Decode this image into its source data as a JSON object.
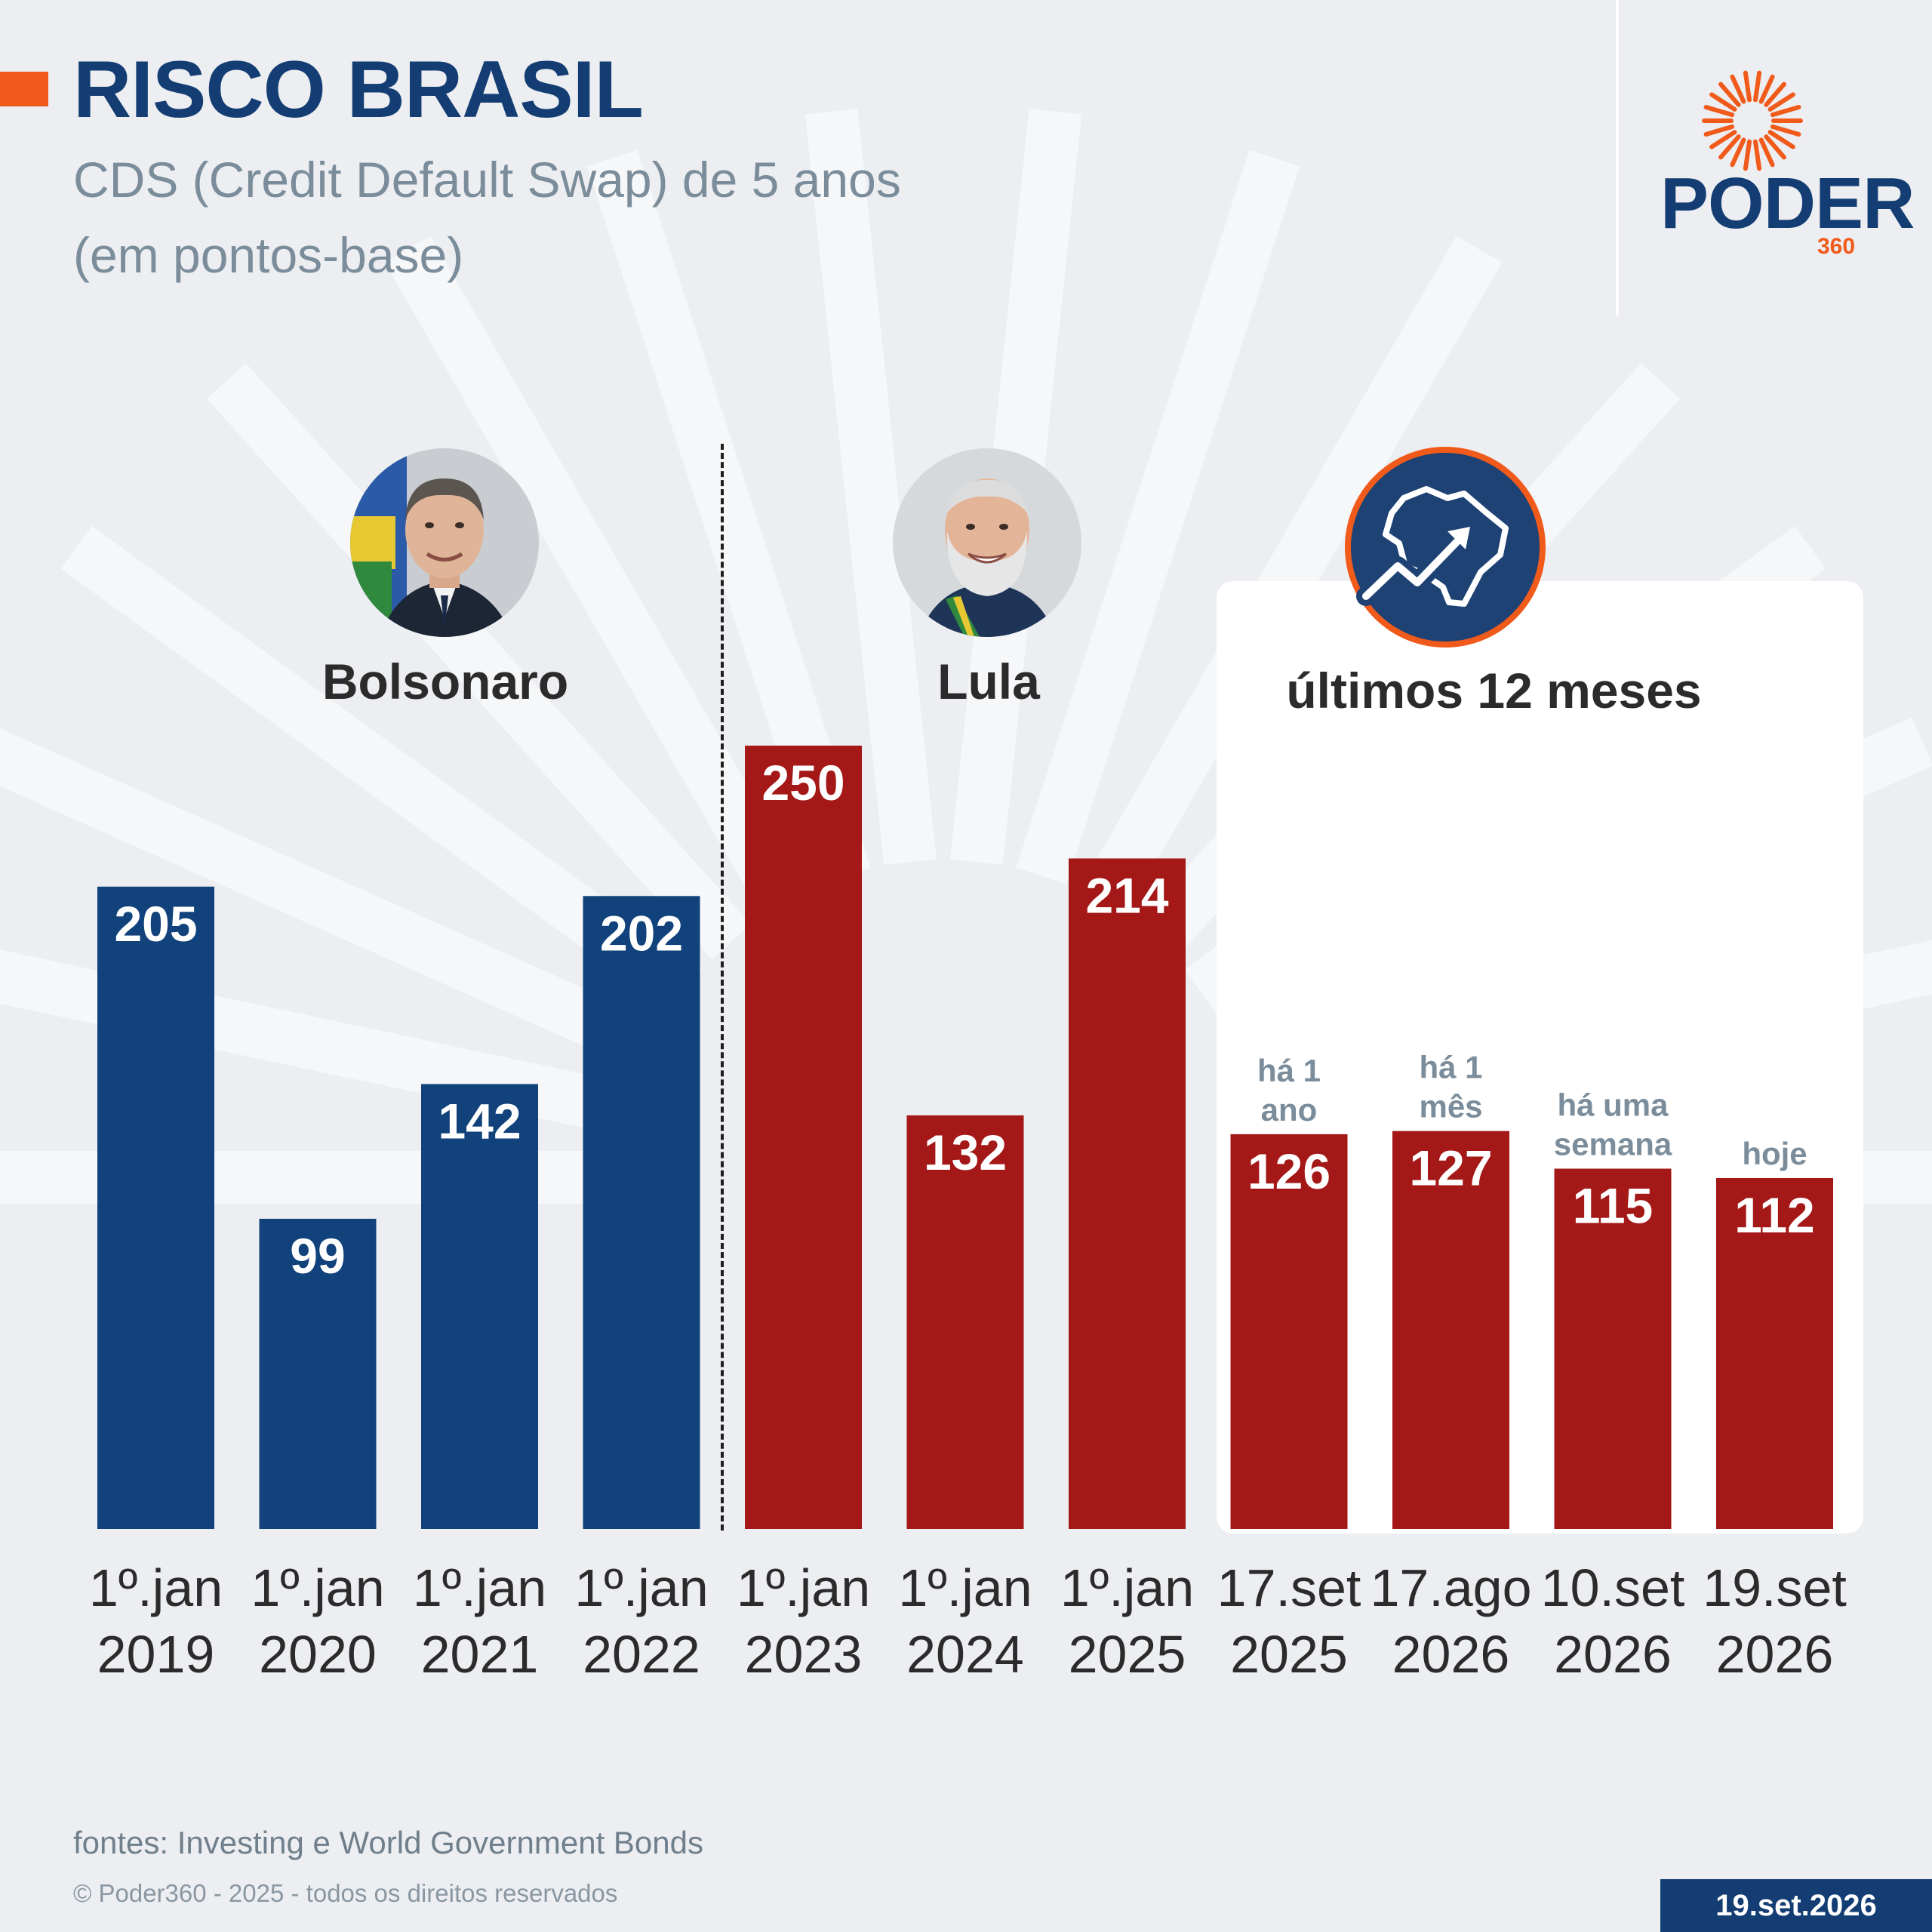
{
  "header": {
    "title": "RISCO BRASIL",
    "subtitle_line1": "CDS (Credit Default Swap) de 5 anos",
    "subtitle_line2": "(em pontos-base)"
  },
  "logo": {
    "word": "PODER",
    "number": "360"
  },
  "groups": {
    "bolsonaro": "Bolsonaro",
    "lula": "Lula",
    "last12": "últimos 12 meses"
  },
  "footer": {
    "source": "fontes: Investing e World Government Bonds",
    "copyright": "© Poder360 - 2025 - todos os direitos reservados",
    "date": "19.set.2026"
  },
  "colors": {
    "bolsonaro_bars": "#11427b",
    "lula_bars": "#a41818",
    "accent": "#f05a1a",
    "brand": "#133d73"
  },
  "chart_data": {
    "type": "bar",
    "title": "RISCO BRASIL",
    "subtitle": "CDS (Credit Default Swap) de 5 anos (em pontos-base)",
    "ylim": [
      0,
      250
    ],
    "grid": false,
    "categories": [
      [
        "1º.jan",
        "2019"
      ],
      [
        "1º.jan",
        "2020"
      ],
      [
        "1º.jan",
        "2021"
      ],
      [
        "1º.jan",
        "2022"
      ],
      [
        "1º.jan",
        "2023"
      ],
      [
        "1º.jan",
        "2024"
      ],
      [
        "1º.jan",
        "2025"
      ],
      [
        "17.set",
        "2025"
      ],
      [
        "17.ago",
        "2026"
      ],
      [
        "10.set",
        "2026"
      ],
      [
        "19.set",
        "2026"
      ]
    ],
    "values": [
      205,
      99,
      142,
      202,
      250,
      132,
      214,
      126,
      127,
      115,
      112
    ],
    "groups": [
      "bolsonaro",
      "bolsonaro",
      "bolsonaro",
      "bolsonaro",
      "lula",
      "lula",
      "lula",
      "lula",
      "lula",
      "lula",
      "lula"
    ],
    "annotations": [
      null,
      null,
      null,
      null,
      null,
      null,
      null,
      [
        "há 1",
        "ano"
      ],
      [
        "há 1",
        "mês"
      ],
      [
        "há uma",
        "semana"
      ],
      [
        "hoje"
      ]
    ]
  }
}
